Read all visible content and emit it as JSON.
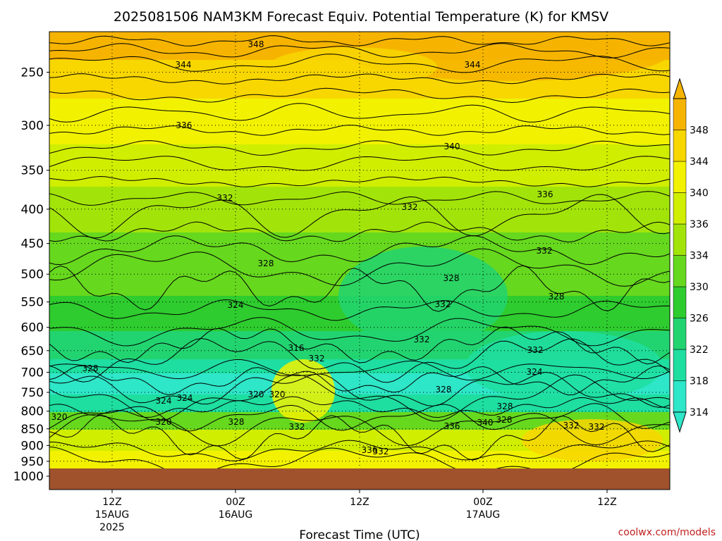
{
  "chart_data": {
    "type": "heatmap",
    "title": "2025081506 NAM3KM Forecast Equiv. Potential Temperature (K) for KMSV",
    "xlabel": "Forecast Time (UTC)",
    "ylabel": "",
    "credit": "coolwx.com/models",
    "y_axis": {
      "scale": "log-pressure",
      "ticks": [
        "250",
        "300",
        "350",
        "400",
        "450",
        "500",
        "550",
        "600",
        "650",
        "700",
        "750",
        "800",
        "850",
        "900",
        "950",
        "1000"
      ]
    },
    "x_axis": {
      "ticks": [
        {
          "line1": "12Z",
          "line2": "15AUG",
          "line3": "2025"
        },
        {
          "line1": "00Z",
          "line2": "16AUG",
          "line3": ""
        },
        {
          "line1": "12Z",
          "line2": "",
          "line3": ""
        },
        {
          "line1": "00Z",
          "line2": "17AUG",
          "line3": ""
        },
        {
          "line1": "12Z",
          "line2": "",
          "line3": ""
        }
      ]
    },
    "colorbar": {
      "levels": [
        "314",
        "318",
        "322",
        "326",
        "330",
        "334",
        "336",
        "340",
        "344",
        "348"
      ],
      "colors": [
        "#2ee6c8",
        "#1edea0",
        "#22d470",
        "#2ecc2e",
        "#66d81e",
        "#a2e40a",
        "#d0ee00",
        "#f2f200",
        "#f8d600",
        "#f6b400"
      ]
    },
    "ground_color": "#a0522d",
    "contour_labels": [
      "348",
      "344",
      "344",
      "336",
      "340",
      "332",
      "332",
      "336",
      "332",
      "328",
      "324",
      "328",
      "332",
      "332",
      "328",
      "332",
      "328",
      "316",
      "332",
      "324",
      "324",
      "328",
      "324",
      "320",
      "320",
      "328",
      "320",
      "328",
      "320",
      "328",
      "332",
      "332",
      "336",
      "340",
      "336",
      "332",
      "332"
    ]
  }
}
